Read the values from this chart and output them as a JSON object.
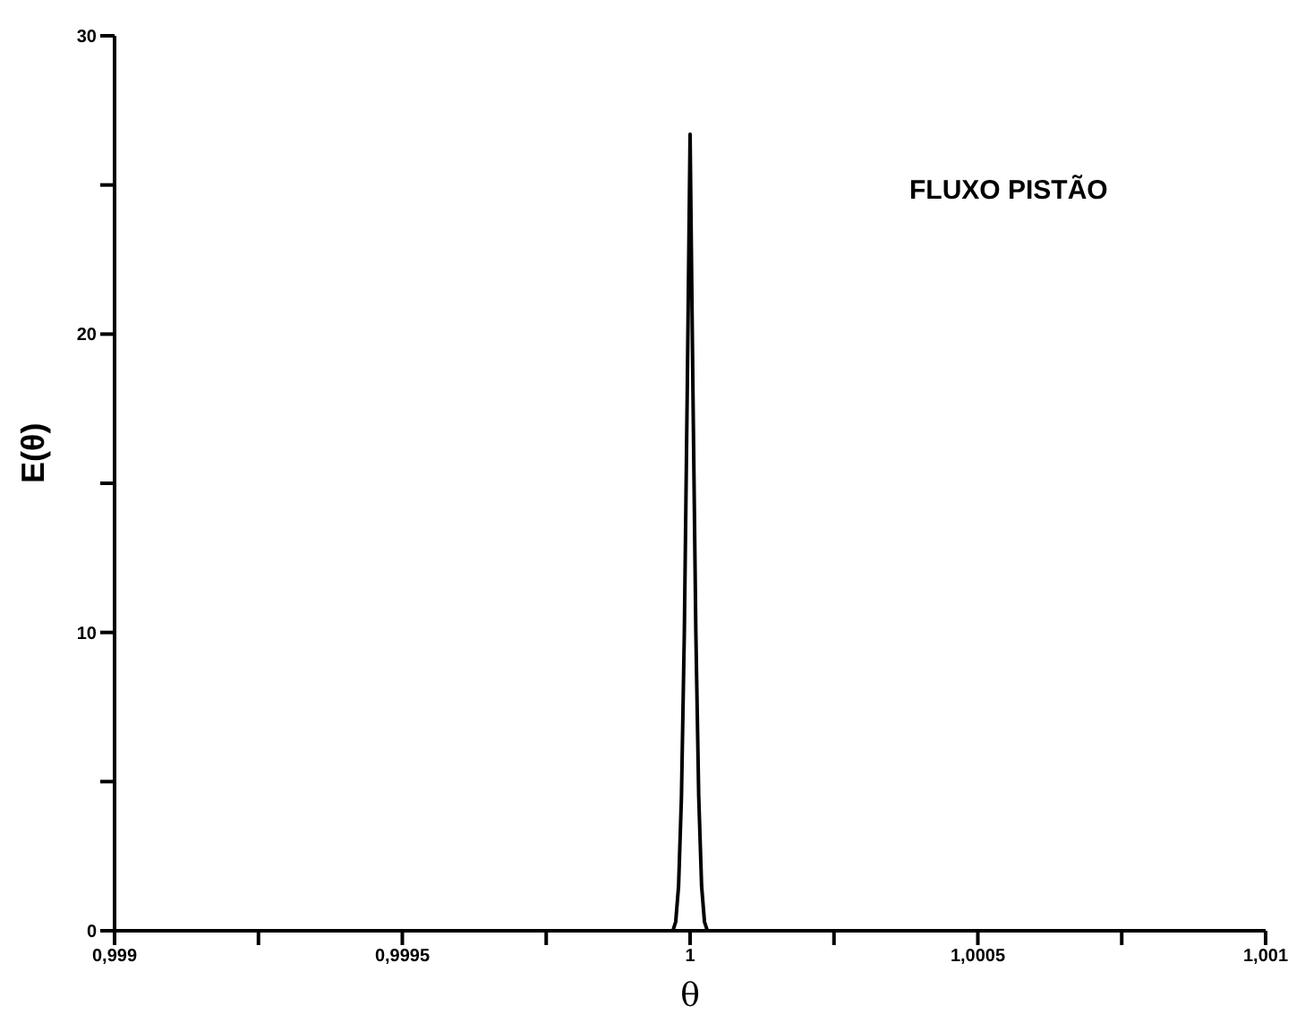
{
  "chart_data": {
    "type": "line",
    "xlabel": "θ",
    "ylabel": "E(θ)",
    "annotations": [
      "FLUXO PISTÃO"
    ],
    "x": [
      0.999,
      0.99997,
      0.999975,
      0.99998,
      0.999985,
      0.99999,
      0.999995,
      1,
      1.000005,
      1.00001,
      1.000015,
      1.00002,
      1.000025,
      1.00003,
      1.001
    ],
    "series": [
      {
        "color": "#000000",
        "values": [
          0,
          0,
          0.3,
          1.5,
          4.5,
          10,
          18,
          26.7,
          18,
          10,
          4.5,
          1.5,
          0.3,
          0,
          0
        ]
      }
    ],
    "xlim": [
      0.999,
      1.001
    ],
    "xticks": [
      {
        "value": 0.999,
        "label": "0,999"
      },
      {
        "value": 0.99925,
        "label": null
      },
      {
        "value": 0.9995,
        "label": "0,9995"
      },
      {
        "value": 0.99975,
        "label": null
      },
      {
        "value": 1,
        "label": "1"
      },
      {
        "value": 1.00025,
        "label": null
      },
      {
        "value": 1.0005,
        "label": "1,0005"
      },
      {
        "value": 1.00075,
        "label": null
      },
      {
        "value": 1.001,
        "label": "1,001"
      }
    ],
    "ylim": [
      0,
      30
    ],
    "yticks": [
      0,
      {
        "value": 5,
        "label": null
      },
      10,
      {
        "value": 15,
        "label": null
      },
      20,
      {
        "value": 25,
        "label": null
      },
      30
    ],
    "grid": false,
    "legend": false,
    "marker": "none",
    "line_style": "solid"
  }
}
